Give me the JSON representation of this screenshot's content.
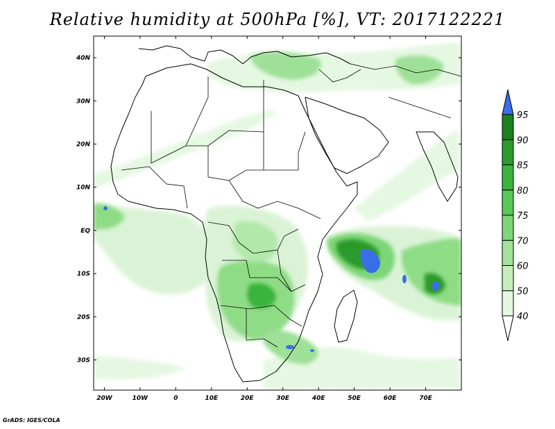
{
  "title": "Relative humidity at 500hPa [%], VT: 2017122221",
  "credit": "GrADS: IGES/COLA",
  "map": {
    "lon_range": [
      -23,
      80
    ],
    "lat_range": [
      -37,
      45
    ],
    "lat_ticks": [
      {
        "value": 40,
        "label": "40N"
      },
      {
        "value": 30,
        "label": "30N"
      },
      {
        "value": 20,
        "label": "20N"
      },
      {
        "value": 10,
        "label": "10N"
      },
      {
        "value": 0,
        "label": "EQ"
      },
      {
        "value": -10,
        "label": "10S"
      },
      {
        "value": -20,
        "label": "20S"
      },
      {
        "value": -30,
        "label": "30S"
      }
    ],
    "lon_ticks": [
      {
        "value": -20,
        "label": "20W"
      },
      {
        "value": -10,
        "label": "10W"
      },
      {
        "value": 0,
        "label": "0"
      },
      {
        "value": 10,
        "label": "10E"
      },
      {
        "value": 20,
        "label": "20E"
      },
      {
        "value": 30,
        "label": "30E"
      },
      {
        "value": 40,
        "label": "40E"
      },
      {
        "value": 50,
        "label": "50E"
      },
      {
        "value": 60,
        "label": "60E"
      },
      {
        "value": 70,
        "label": "70E"
      }
    ]
  },
  "colorbar": {
    "levels": [
      "40",
      "50",
      "60",
      "70",
      "75",
      "80",
      "85",
      "90",
      "95"
    ],
    "colors": [
      "#ffffff",
      "#e4f8e1",
      "#c6eebd",
      "#a2e29a",
      "#7dd677",
      "#56c855",
      "#3bb43b",
      "#2a9a2a",
      "#1c801c",
      "#3a6ee8"
    ]
  }
}
